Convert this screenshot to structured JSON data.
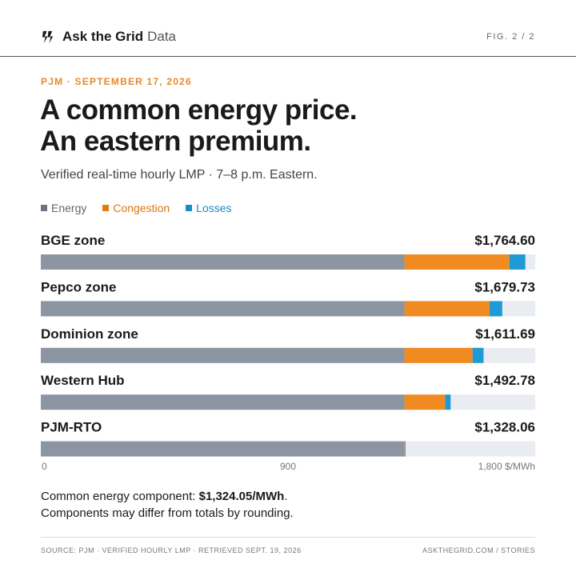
{
  "header": {
    "brand_name": "Ask the Grid",
    "brand_sub": "Data",
    "figure_label": "FIG. 2 / 2"
  },
  "kicker": "PJM · SEPTEMBER 17, 2026",
  "headline": {
    "line1": "A common energy price.",
    "line2": "An eastern premium."
  },
  "subhead": "Verified real-time hourly LMP · 7–8 p.m. Eastern.",
  "legend": [
    {
      "label": "Energy",
      "color": "#8c96a3"
    },
    {
      "label": "Congestion",
      "color": "#f28a22"
    },
    {
      "label": "Losses",
      "color": "#1e9bd7"
    }
  ],
  "chart_data": {
    "type": "bar",
    "orientation": "horizontal",
    "stacked": true,
    "categories": [
      "BGE zone",
      "Pepco zone",
      "Dominion zone",
      "Western Hub",
      "PJM-RTO"
    ],
    "totals_labels": [
      "$1,764.60",
      "$1,679.73",
      "$1,611.69",
      "$1,492.78",
      "$1,328.06"
    ],
    "series": [
      {
        "name": "Energy",
        "color": "#8c96a3",
        "values": [
          1324.05,
          1324.05,
          1324.05,
          1324.05,
          1324.05
        ]
      },
      {
        "name": "Congestion",
        "color": "#f28a22",
        "values": [
          382,
          310,
          248,
          148,
          2
        ]
      },
      {
        "name": "Losses",
        "color": "#1e9bd7",
        "values": [
          58,
          46,
          40,
          20,
          2
        ]
      }
    ],
    "xlim": [
      0,
      1800
    ],
    "ticks": [
      {
        "value": 0,
        "label": "0"
      },
      {
        "value": 900,
        "label": "900"
      },
      {
        "value": 1800,
        "label": "1,800 $/MWh"
      }
    ],
    "track_color": "#e9edf1"
  },
  "note": {
    "prefix": "Common energy component: ",
    "value": "$1,324.05/MWh",
    "suffix": ".",
    "line2": "Components may differ from totals by rounding."
  },
  "footer": {
    "source": "SOURCE: PJM · VERIFIED HOURLY LMP · RETRIEVED SEPT. 19, 2026",
    "site": "ASKTHEGRID.COM / STORIES"
  }
}
